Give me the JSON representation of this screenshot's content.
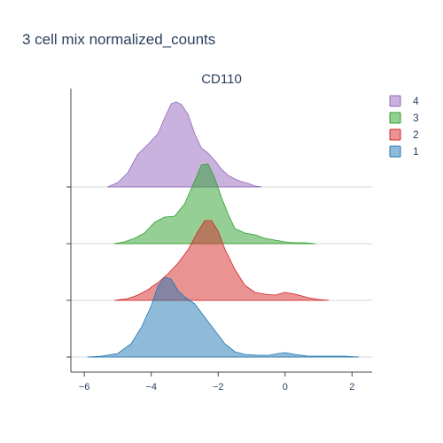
{
  "chart_data": {
    "type": "ridgeline",
    "title": "3 cell mix normalized_counts",
    "subtitle": "CD110",
    "xlim": [
      -6.4,
      2.6
    ],
    "xticks": [
      -6,
      -4,
      -2,
      0,
      2
    ],
    "xtick_labels": [
      "−6",
      "−4",
      "−2",
      "0",
      "2"
    ],
    "legend": [
      "4",
      "3",
      "2",
      "1"
    ],
    "series": [
      {
        "name": "1",
        "color": "#1f77b4",
        "x": [
          -5.9,
          -5.5,
          -5.0,
          -4.6,
          -4.3,
          -4.0,
          -3.8,
          -3.6,
          -3.4,
          -3.2,
          -3.0,
          -2.7,
          -2.4,
          -2.1,
          -1.8,
          -1.5,
          -1.2,
          -0.8,
          -0.5,
          -0.2,
          0.0,
          0.3,
          0.7,
          1.1,
          1.5,
          1.8,
          2.2
        ],
        "y": [
          0.0,
          0.01,
          0.04,
          0.15,
          0.33,
          0.58,
          0.8,
          0.9,
          0.88,
          0.75,
          0.68,
          0.6,
          0.45,
          0.3,
          0.15,
          0.06,
          0.03,
          0.02,
          0.02,
          0.04,
          0.05,
          0.03,
          0.01,
          0.01,
          0.01,
          0.01,
          0.0
        ]
      },
      {
        "name": "2",
        "color": "#d62728",
        "x": [
          -5.1,
          -4.7,
          -4.4,
          -4.1,
          -3.8,
          -3.5,
          -3.2,
          -2.9,
          -2.6,
          -2.4,
          -2.2,
          -2.0,
          -1.8,
          -1.5,
          -1.2,
          -0.9,
          -0.6,
          -0.3,
          0.0,
          0.3,
          0.7,
          1.0,
          1.3
        ],
        "y": [
          0.0,
          0.02,
          0.06,
          0.12,
          0.2,
          0.3,
          0.42,
          0.57,
          0.78,
          0.9,
          0.9,
          0.78,
          0.58,
          0.35,
          0.17,
          0.09,
          0.07,
          0.06,
          0.09,
          0.07,
          0.03,
          0.01,
          0.0
        ]
      },
      {
        "name": "3",
        "color": "#2ca02c",
        "x": [
          -5.1,
          -4.8,
          -4.5,
          -4.2,
          -3.9,
          -3.6,
          -3.3,
          -3.0,
          -2.7,
          -2.5,
          -2.3,
          -2.1,
          -1.9,
          -1.7,
          -1.5,
          -1.2,
          -0.9,
          -0.6,
          -0.3,
          0.0,
          0.3,
          0.6,
          0.9
        ],
        "y": [
          0.0,
          0.02,
          0.06,
          0.12,
          0.24,
          0.3,
          0.31,
          0.45,
          0.71,
          0.89,
          0.9,
          0.74,
          0.52,
          0.33,
          0.17,
          0.12,
          0.1,
          0.06,
          0.04,
          0.02,
          0.01,
          0.01,
          0.0
        ]
      },
      {
        "name": "4",
        "color": "#9467bd",
        "x": [
          -5.3,
          -5.0,
          -4.7,
          -4.4,
          -4.1,
          -3.8,
          -3.6,
          -3.4,
          -3.25,
          -3.1,
          -2.9,
          -2.7,
          -2.5,
          -2.3,
          -2.1,
          -1.9,
          -1.7,
          -1.5,
          -1.3,
          -1.1,
          -0.9,
          -0.7
        ],
        "y": [
          0.0,
          0.05,
          0.16,
          0.37,
          0.48,
          0.6,
          0.78,
          0.94,
          0.96,
          0.93,
          0.82,
          0.6,
          0.44,
          0.38,
          0.3,
          0.2,
          0.13,
          0.09,
          0.06,
          0.04,
          0.01,
          0.0
        ]
      }
    ]
  }
}
